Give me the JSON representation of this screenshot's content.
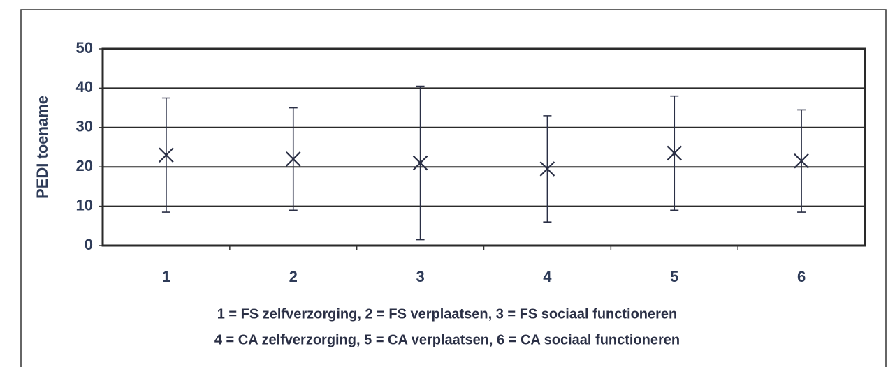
{
  "chart_data": {
    "type": "errorbar",
    "y_label": "PEDI toename",
    "categories": [
      "1",
      "2",
      "3",
      "4",
      "5",
      "6"
    ],
    "values": [
      23,
      22,
      21,
      19.5,
      23.5,
      21.5
    ],
    "errors": [
      14.5,
      13,
      19.5,
      13.5,
      14.5,
      13
    ],
    "color": "#2a2f45",
    "ylim": [
      0,
      50
    ],
    "yticks": [
      0,
      10,
      20,
      30,
      40,
      50
    ],
    "grid": true,
    "annotations": [
      "1 = FS zelfverzorging, 2 = FS verplaatsen, 3 = FS sociaal functioneren",
      "4 = CA zelfverzorging, 5 = CA verplaatsen, 6 = CA sociaal functioneren"
    ]
  }
}
